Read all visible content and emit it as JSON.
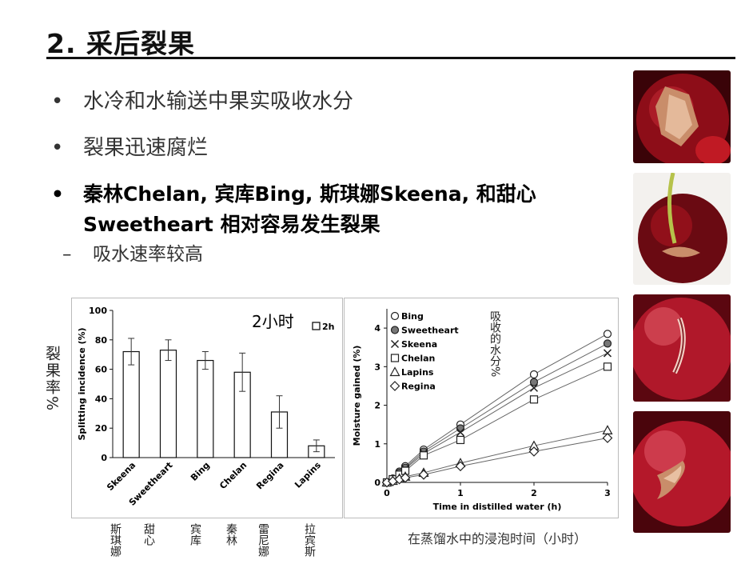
{
  "slide": {
    "title": "2. 采后裂果",
    "bullets": [
      "水冷和水输送中果实吸收水分",
      "裂果迅速腐烂",
      "秦林Chelan, 宾库Bing, 斯琪娜Skeena, 和甜心 Sweetheart 相对容易发生裂果"
    ],
    "sub_bullet": "吸水速率较高",
    "bullet_marker": "•",
    "sub_marker": "–"
  },
  "annotations": {
    "left_axis_cn": "裂果率%",
    "chart1_note": "2小时",
    "chart2_note": "吸收的水分%",
    "x_note": "在蒸馏水中的浸泡时间（小时）",
    "cultivar_cn": [
      "斯琪娜",
      "甜心",
      "宾库",
      "秦林",
      "雷尼娜",
      "拉宾斯"
    ]
  },
  "colors": {
    "photo_red": "#a3121e",
    "photo_dark": "#5b0710",
    "crack": "#c98d6a"
  },
  "chart_data": [
    {
      "type": "bar",
      "legend": [
        "2h"
      ],
      "categories": [
        "Skeena",
        "Sweetheart",
        "Bing",
        "Chelan",
        "Regina",
        "Lapins"
      ],
      "values": [
        72,
        73,
        66,
        58,
        31,
        8
      ],
      "errors": [
        9,
        7,
        6,
        13,
        11,
        4
      ],
      "ylabel": "Splitting incidence (%)",
      "xlabel": "",
      "ylim": [
        0,
        100
      ],
      "yticks": [
        0,
        20,
        40,
        60,
        80,
        100
      ]
    },
    {
      "type": "scatter",
      "ylabel": "Moisture gained (%)",
      "xlabel": "Time in distilled water (h)",
      "xlim": [
        0,
        3
      ],
      "ylim": [
        0,
        4.5
      ],
      "xticks": [
        0,
        1,
        2,
        3
      ],
      "yticks": [
        0,
        1,
        2,
        3,
        4
      ],
      "x": [
        0,
        0.08,
        0.17,
        0.25,
        0.5,
        1,
        2,
        3
      ],
      "series": [
        {
          "name": "Bing",
          "marker": "circle-open",
          "values": [
            0,
            0.1,
            0.28,
            0.42,
            0.85,
            1.5,
            2.8,
            3.85
          ]
        },
        {
          "name": "Sweetheart",
          "marker": "circle-filled",
          "values": [
            0,
            0.1,
            0.25,
            0.38,
            0.8,
            1.4,
            2.6,
            3.6
          ]
        },
        {
          "name": "Skeena",
          "marker": "x",
          "values": [
            0,
            0.09,
            0.22,
            0.35,
            0.75,
            1.3,
            2.45,
            3.35
          ]
        },
        {
          "name": "Chelan",
          "marker": "square-open",
          "values": [
            0,
            0.08,
            0.2,
            0.3,
            0.7,
            1.1,
            2.15,
            3.0
          ]
        },
        {
          "name": "Lapins",
          "marker": "triangle-open",
          "values": [
            0,
            0.04,
            0.1,
            0.15,
            0.25,
            0.5,
            0.95,
            1.35
          ]
        },
        {
          "name": "Regina",
          "marker": "diamond-open",
          "values": [
            0,
            0.03,
            0.08,
            0.12,
            0.2,
            0.42,
            0.8,
            1.15
          ]
        }
      ]
    }
  ]
}
